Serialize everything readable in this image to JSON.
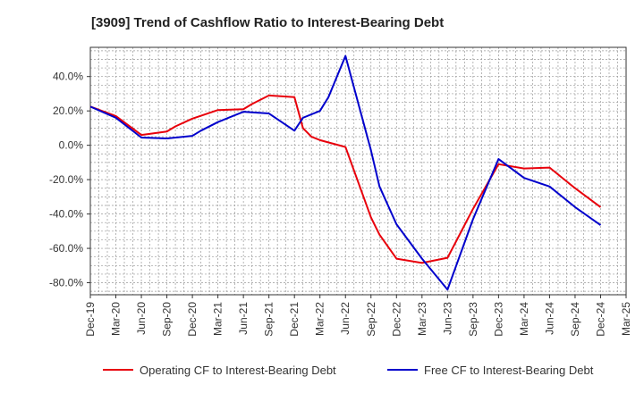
{
  "chart_data": {
    "type": "line",
    "title": "[3909]  Trend of Cashflow Ratio to Interest-Bearing Debt",
    "xlabel": "",
    "ylabel": "",
    "x": [
      "Dec-19",
      "Jan-20",
      "Mar-20",
      "Jun-20",
      "Sep-20",
      "Oct-20",
      "Dec-20",
      "Jan-21",
      "Mar-21",
      "Jun-21",
      "Jul-21",
      "Sep-21",
      "Dec-21",
      "Jan-22",
      "Feb-22",
      "Mar-22",
      "Apr-22",
      "Jun-22",
      "Sep-22",
      "Oct-22",
      "Dec-22",
      "Mar-23",
      "Jun-23",
      "Sep-23",
      "Dec-23",
      "Mar-24",
      "Jun-24",
      "Sep-24",
      "Dec-24"
    ],
    "x_ticks": [
      "Dec-19",
      "Mar-20",
      "Jun-20",
      "Sep-20",
      "Dec-20",
      "Mar-21",
      "Jun-21",
      "Sep-21",
      "Dec-21",
      "Mar-22",
      "Jun-22",
      "Sep-22",
      "Dec-22",
      "Mar-23",
      "Jun-23",
      "Sep-23",
      "Dec-23",
      "Mar-24",
      "Jun-24",
      "Sep-24",
      "Dec-24",
      "Mar-25"
    ],
    "x_range": [
      "Dec-19",
      "Mar-25"
    ],
    "y_ticks": [
      40,
      20,
      0,
      -20,
      -40,
      -60,
      -80
    ],
    "y_tick_labels": [
      "40.0%",
      "20.0%",
      "0.0%",
      "-20.0%",
      "-40.0%",
      "-60.0%",
      "-80.0%"
    ],
    "ylim": [
      -87,
      57
    ],
    "grid": true,
    "legend_position": "bottom",
    "series": [
      {
        "name": "Operating CF to Interest-Bearing Debt",
        "color": "#e8000b",
        "points": [
          [
            "Dec-19",
            22.5
          ],
          [
            "Mar-20",
            17
          ],
          [
            "Jun-20",
            6
          ],
          [
            "Sep-20",
            8
          ],
          [
            "Oct-20",
            11
          ],
          [
            "Dec-20",
            15.5
          ],
          [
            "Mar-21",
            20.5
          ],
          [
            "Jun-21",
            21
          ],
          [
            "Jul-21",
            24
          ],
          [
            "Sep-21",
            29
          ],
          [
            "Dec-21",
            28
          ],
          [
            "Jan-22",
            10
          ],
          [
            "Feb-22",
            5
          ],
          [
            "Mar-22",
            3
          ],
          [
            "Jun-22",
            -1
          ],
          [
            "Sep-22",
            -42
          ],
          [
            "Oct-22",
            -52
          ],
          [
            "Dec-22",
            -66
          ],
          [
            "Mar-23",
            -68.5
          ],
          [
            "Jun-23",
            -65.5
          ],
          [
            "Sep-23",
            -37
          ],
          [
            "Dec-23",
            -11
          ],
          [
            "Mar-24",
            -13.5
          ],
          [
            "Jun-24",
            -13
          ],
          [
            "Sep-24",
            -25
          ],
          [
            "Dec-24",
            -36
          ]
        ]
      },
      {
        "name": "Free CF to Interest-Bearing Debt",
        "color": "#0000cc",
        "points": [
          [
            "Dec-19",
            22.5
          ],
          [
            "Mar-20",
            16
          ],
          [
            "Jun-20",
            4.5
          ],
          [
            "Sep-20",
            4
          ],
          [
            "Dec-20",
            5.5
          ],
          [
            "Jan-21",
            8.5
          ],
          [
            "Mar-21",
            13.5
          ],
          [
            "Jun-21",
            19.5
          ],
          [
            "Sep-21",
            18.5
          ],
          [
            "Dec-21",
            8.5
          ],
          [
            "Jan-22",
            16
          ],
          [
            "Mar-22",
            20
          ],
          [
            "Apr-22",
            28
          ],
          [
            "Jun-22",
            52
          ],
          [
            "Sep-22",
            -3
          ],
          [
            "Oct-22",
            -24
          ],
          [
            "Dec-22",
            -46
          ],
          [
            "Mar-23",
            -66
          ],
          [
            "Jun-23",
            -84
          ],
          [
            "Sep-23",
            -43
          ],
          [
            "Dec-23",
            -8
          ],
          [
            "Mar-24",
            -19
          ],
          [
            "Jun-24",
            -24
          ],
          [
            "Sep-24",
            -36
          ],
          [
            "Dec-24",
            -46.5
          ]
        ]
      }
    ]
  }
}
